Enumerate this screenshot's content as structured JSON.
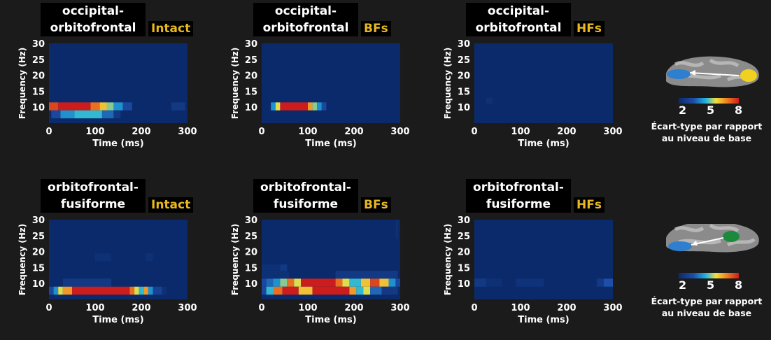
{
  "colors": {
    "background": "#1b1b1b",
    "plot_background": "#0b2a6b",
    "title_box": "#000000",
    "tag_text": "#e8b820",
    "text": "#ffffff",
    "colormap": [
      "#0b2a6b",
      "#1d4ea8",
      "#20b4e0",
      "#f0e040",
      "#f08020",
      "#cc1c1c"
    ]
  },
  "colorbar": {
    "ticks": [
      "2",
      "5",
      "8"
    ],
    "caption_line1": "Écart-type par rapport",
    "caption_line2": "au niveau de base"
  },
  "chart_data": [
    {
      "type": "heatmap",
      "row": 1,
      "col": 1,
      "title_line1": "occipital-",
      "title_line2": "orbitofrontal",
      "tag": "Intact",
      "xlabel": "Time (ms)",
      "ylabel": "Frequency (Hz)",
      "xlim": [
        0,
        300
      ],
      "ylim": [
        5,
        30
      ],
      "xticks": [
        "0",
        "100",
        "200",
        "300"
      ],
      "yticks": [
        "10",
        "15",
        "20",
        "25",
        "30"
      ],
      "cells": [
        {
          "t": [
            0,
            20
          ],
          "f": [
            9,
            11.5
          ],
          "v": 7.5
        },
        {
          "t": [
            20,
            90
          ],
          "f": [
            9,
            11.5
          ],
          "v": 8
        },
        {
          "t": [
            90,
            110
          ],
          "f": [
            9,
            11.5
          ],
          "v": 7
        },
        {
          "t": [
            110,
            125
          ],
          "f": [
            9,
            11.5
          ],
          "v": 6
        },
        {
          "t": [
            125,
            140
          ],
          "f": [
            9,
            11.5
          ],
          "v": 5
        },
        {
          "t": [
            140,
            160
          ],
          "f": [
            9,
            11.5
          ],
          "v": 4
        },
        {
          "t": [
            160,
            180
          ],
          "f": [
            9,
            11.5
          ],
          "v": 3
        },
        {
          "t": [
            265,
            295
          ],
          "f": [
            9,
            11.5
          ],
          "v": 2.5
        },
        {
          "t": [
            5,
            25
          ],
          "f": [
            6.5,
            9
          ],
          "v": 3
        },
        {
          "t": [
            25,
            55
          ],
          "f": [
            6.5,
            9
          ],
          "v": 4
        },
        {
          "t": [
            55,
            115
          ],
          "f": [
            6.5,
            9
          ],
          "v": 4.5
        },
        {
          "t": [
            115,
            140
          ],
          "f": [
            6.5,
            9
          ],
          "v": 3.5
        },
        {
          "t": [
            140,
            155
          ],
          "f": [
            6.5,
            9
          ],
          "v": 2.5
        }
      ]
    },
    {
      "type": "heatmap",
      "row": 1,
      "col": 2,
      "title_line1": "occipital-",
      "title_line2": "orbitofrontal",
      "tag": "BFs",
      "xlabel": "Time (ms)",
      "ylabel": "Frequency (Hz)",
      "xlim": [
        0,
        300
      ],
      "ylim": [
        5,
        30
      ],
      "xticks": [
        "0",
        "100",
        "200",
        "300"
      ],
      "yticks": [
        "10",
        "15",
        "20",
        "25",
        "30"
      ],
      "cells": [
        {
          "t": [
            0,
            10
          ],
          "f": [
            12,
            14
          ],
          "v": 2
        },
        {
          "t": [
            0,
            10
          ],
          "f": [
            9,
            11.5
          ],
          "v": 2
        },
        {
          "t": [
            20,
            30
          ],
          "f": [
            9,
            11.5
          ],
          "v": 4
        },
        {
          "t": [
            30,
            40
          ],
          "f": [
            9,
            11.5
          ],
          "v": 5.5
        },
        {
          "t": [
            40,
            100
          ],
          "f": [
            9,
            11.5
          ],
          "v": 8
        },
        {
          "t": [
            100,
            110
          ],
          "f": [
            9,
            11.5
          ],
          "v": 6.5
        },
        {
          "t": [
            110,
            120
          ],
          "f": [
            9,
            11.5
          ],
          "v": 5
        },
        {
          "t": [
            120,
            130
          ],
          "f": [
            9,
            11.5
          ],
          "v": 4
        },
        {
          "t": [
            130,
            140
          ],
          "f": [
            9,
            11.5
          ],
          "v": 3
        },
        {
          "t": [
            215,
            220
          ],
          "f": [
            17,
            19
          ],
          "v": 2
        },
        {
          "t": [
            230,
            235
          ],
          "f": [
            9,
            11.5
          ],
          "v": 2
        }
      ]
    },
    {
      "type": "heatmap",
      "row": 1,
      "col": 3,
      "title_line1": "occipital-",
      "title_line2": "orbitofrontal",
      "tag": "HFs",
      "xlabel": "Time (ms)",
      "ylabel": "Frequency (Hz)",
      "xlim": [
        0,
        300
      ],
      "ylim": [
        5,
        30
      ],
      "xticks": [
        "0",
        "100",
        "200",
        "300"
      ],
      "yticks": [
        "10",
        "15",
        "20",
        "25",
        "30"
      ],
      "cells": [
        {
          "t": [
            25,
            40
          ],
          "f": [
            11,
            13
          ],
          "v": 2.2
        }
      ]
    },
    {
      "type": "heatmap",
      "row": 2,
      "col": 1,
      "title_line1": "orbitofrontal-",
      "title_line2": "fusiforme",
      "tag": "Intact",
      "xlabel": "Time (ms)",
      "ylabel": "Frequency (Hz)",
      "xlim": [
        0,
        300
      ],
      "ylim": [
        5,
        30
      ],
      "xticks": [
        "0",
        "100",
        "200",
        "300"
      ],
      "yticks": [
        "10",
        "15",
        "20",
        "25",
        "30"
      ],
      "cells": [
        {
          "t": [
            0,
            25
          ],
          "f": [
            27.5,
            30
          ],
          "v": 2
        },
        {
          "t": [
            100,
            135
          ],
          "f": [
            17,
            19.5
          ],
          "v": 2.2
        },
        {
          "t": [
            210,
            225
          ],
          "f": [
            17,
            19.5
          ],
          "v": 2.2
        },
        {
          "t": [
            265,
            270
          ],
          "f": [
            20,
            22
          ],
          "v": 2
        },
        {
          "t": [
            55,
            85
          ],
          "f": [
            13,
            15.5
          ],
          "v": 2
        },
        {
          "t": [
            10,
            30
          ],
          "f": [
            9,
            11.5
          ],
          "v": 2
        },
        {
          "t": [
            30,
            135
          ],
          "f": [
            9,
            11.5
          ],
          "v": 2.5
        },
        {
          "t": [
            0,
            10
          ],
          "f": [
            6.5,
            9
          ],
          "v": 3
        },
        {
          "t": [
            10,
            20
          ],
          "f": [
            6.5,
            9
          ],
          "v": 4
        },
        {
          "t": [
            20,
            30
          ],
          "f": [
            6.5,
            9
          ],
          "v": 5.5
        },
        {
          "t": [
            30,
            50
          ],
          "f": [
            6.5,
            9
          ],
          "v": 6.5
        },
        {
          "t": [
            50,
            175
          ],
          "f": [
            6.5,
            9
          ],
          "v": 8
        },
        {
          "t": [
            175,
            185
          ],
          "f": [
            6.5,
            9
          ],
          "v": 7
        },
        {
          "t": [
            185,
            195
          ],
          "f": [
            6.5,
            9
          ],
          "v": 5.5
        },
        {
          "t": [
            195,
            205
          ],
          "f": [
            6.5,
            9
          ],
          "v": 4.5
        },
        {
          "t": [
            205,
            215
          ],
          "f": [
            6.5,
            9
          ],
          "v": 6.5
        },
        {
          "t": [
            215,
            225
          ],
          "f": [
            6.5,
            9
          ],
          "v": 4
        },
        {
          "t": [
            225,
            245
          ],
          "f": [
            6.5,
            9
          ],
          "v": 2.8
        },
        {
          "t": [
            245,
            255
          ],
          "f": [
            6.5,
            9
          ],
          "v": 2.2
        }
      ]
    },
    {
      "type": "heatmap",
      "row": 2,
      "col": 2,
      "title_line1": "orbitofrontal-",
      "title_line2": "fusiforme",
      "tag": "BFs",
      "xlabel": "Time (ms)",
      "ylabel": "Frequency (Hz)",
      "xlim": [
        0,
        300
      ],
      "ylim": [
        5,
        30
      ],
      "xticks": [
        "0",
        "100",
        "200",
        "300"
      ],
      "yticks": [
        "10",
        "15",
        "20",
        "25",
        "30"
      ],
      "cells": [
        {
          "t": [
            290,
            295
          ],
          "f": [
            24,
            30
          ],
          "v": 2.2
        },
        {
          "t": [
            0,
            40
          ],
          "f": [
            14,
            16
          ],
          "v": 2.2
        },
        {
          "t": [
            40,
            55
          ],
          "f": [
            14,
            16
          ],
          "v": 2.5
        },
        {
          "t": [
            0,
            60
          ],
          "f": [
            11.5,
            14
          ],
          "v": 2.2
        },
        {
          "t": [
            60,
            160
          ],
          "f": [
            11.5,
            14
          ],
          "v": 2
        },
        {
          "t": [
            160,
            295
          ],
          "f": [
            11.5,
            14
          ],
          "v": 2.5
        },
        {
          "t": [
            0,
            10
          ],
          "f": [
            9,
            11.5
          ],
          "v": 3
        },
        {
          "t": [
            10,
            25
          ],
          "f": [
            9,
            11.5
          ],
          "v": 3.5
        },
        {
          "t": [
            25,
            40
          ],
          "f": [
            9,
            11.5
          ],
          "v": 4
        },
        {
          "t": [
            40,
            55
          ],
          "f": [
            9,
            11.5
          ],
          "v": 5
        },
        {
          "t": [
            55,
            70
          ],
          "f": [
            9,
            11.5
          ],
          "v": 7
        },
        {
          "t": [
            70,
            85
          ],
          "f": [
            9,
            11.5
          ],
          "v": 5.5
        },
        {
          "t": [
            85,
            160
          ],
          "f": [
            9,
            11.5
          ],
          "v": 8
        },
        {
          "t": [
            160,
            175
          ],
          "f": [
            9,
            11.5
          ],
          "v": 7
        },
        {
          "t": [
            175,
            190
          ],
          "f": [
            9,
            11.5
          ],
          "v": 5.5
        },
        {
          "t": [
            190,
            215
          ],
          "f": [
            9,
            11.5
          ],
          "v": 4.5
        },
        {
          "t": [
            215,
            235
          ],
          "f": [
            9,
            11.5
          ],
          "v": 6
        },
        {
          "t": [
            235,
            255
          ],
          "f": [
            9,
            11.5
          ],
          "v": 7.5
        },
        {
          "t": [
            255,
            275
          ],
          "f": [
            9,
            11.5
          ],
          "v": 6
        },
        {
          "t": [
            275,
            290
          ],
          "f": [
            9,
            11.5
          ],
          "v": 4
        },
        {
          "t": [
            290,
            300
          ],
          "f": [
            9,
            11.5
          ],
          "v": 3
        },
        {
          "t": [
            0,
            10
          ],
          "f": [
            6.5,
            9
          ],
          "v": 3
        },
        {
          "t": [
            10,
            25
          ],
          "f": [
            6.5,
            9
          ],
          "v": 4.5
        },
        {
          "t": [
            25,
            45
          ],
          "f": [
            6.5,
            9
          ],
          "v": 7
        },
        {
          "t": [
            45,
            80
          ],
          "f": [
            6.5,
            9
          ],
          "v": 8
        },
        {
          "t": [
            80,
            110
          ],
          "f": [
            6.5,
            9
          ],
          "v": 6
        },
        {
          "t": [
            110,
            190
          ],
          "f": [
            6.5,
            9
          ],
          "v": 8
        },
        {
          "t": [
            190,
            205
          ],
          "f": [
            6.5,
            9
          ],
          "v": 6.5
        },
        {
          "t": [
            205,
            220
          ],
          "f": [
            6.5,
            9
          ],
          "v": 4.5
        },
        {
          "t": [
            220,
            235
          ],
          "f": [
            6.5,
            9
          ],
          "v": 5.5
        },
        {
          "t": [
            235,
            260
          ],
          "f": [
            6.5,
            9
          ],
          "v": 3.5
        },
        {
          "t": [
            260,
            295
          ],
          "f": [
            6.5,
            9
          ],
          "v": 2.5
        }
      ]
    },
    {
      "type": "heatmap",
      "row": 2,
      "col": 3,
      "title_line1": "orbitofrontal-",
      "title_line2": "fusiforme",
      "tag": "HFs",
      "xlabel": "Time (ms)",
      "ylabel": "Frequency (Hz)",
      "xlim": [
        0,
        300
      ],
      "ylim": [
        5,
        30
      ],
      "xticks": [
        "0",
        "100",
        "200",
        "300"
      ],
      "yticks": [
        "10",
        "15",
        "20",
        "25",
        "30"
      ],
      "cells": [
        {
          "t": [
            0,
            25
          ],
          "f": [
            9,
            11.5
          ],
          "v": 2.5
        },
        {
          "t": [
            25,
            60
          ],
          "f": [
            9,
            11.5
          ],
          "v": 2.2
        },
        {
          "t": [
            60,
            90
          ],
          "f": [
            9,
            11.5
          ],
          "v": 2
        },
        {
          "t": [
            90,
            150
          ],
          "f": [
            9,
            11.5
          ],
          "v": 2.3
        },
        {
          "t": [
            150,
            160
          ],
          "f": [
            9,
            11.5
          ],
          "v": 2
        },
        {
          "t": [
            265,
            280
          ],
          "f": [
            9,
            11.5
          ],
          "v": 2.5
        },
        {
          "t": [
            280,
            300
          ],
          "f": [
            9,
            11.5
          ],
          "v": 3.2
        }
      ]
    }
  ]
}
